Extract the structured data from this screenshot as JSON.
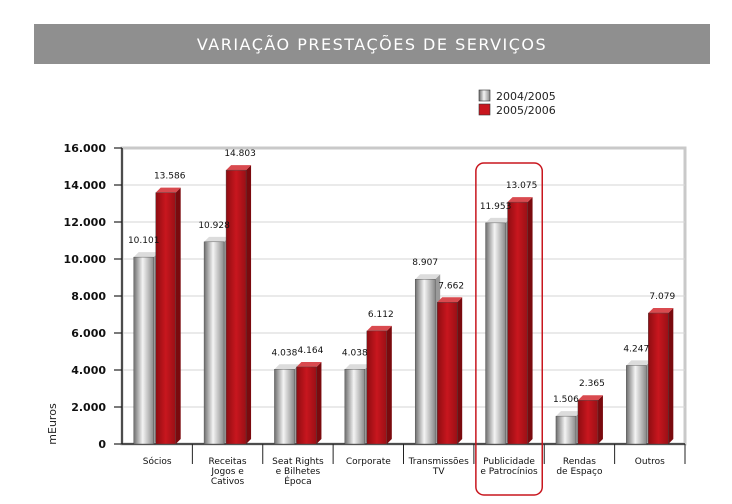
{
  "colors": {
    "series1_front": "#c4c4c4",
    "series2_front": "#c8161e",
    "highlight": "#c8161e",
    "title_bg": "#8f8f8f"
  },
  "chart_data": {
    "type": "bar",
    "title": "VARIAÇÃO PRESTAÇÕES DE SERVIÇOS",
    "ylabel": "mEuros",
    "xlabel": "",
    "ylim": [
      0,
      16000
    ],
    "yticks": [
      0,
      2000,
      4000,
      6000,
      8000,
      10000,
      12000,
      14000,
      16000
    ],
    "ytick_labels": [
      "0",
      "2.000",
      "4.000",
      "6.000",
      "8.000",
      "10.000",
      "12.000",
      "14.000",
      "16.000"
    ],
    "legend_position": "top-right",
    "categories": [
      [
        "Sócios"
      ],
      [
        "Receitas",
        "Jogos e",
        "Cativos"
      ],
      [
        "Seat Rights",
        "e Bilhetes",
        "Época"
      ],
      [
        "Corporate"
      ],
      [
        "Transmissões",
        "TV"
      ],
      [
        "Publicidade",
        "e Patrocínios"
      ],
      [
        "Rendas",
        "de Espaço"
      ],
      [
        "Outros"
      ]
    ],
    "highlighted_category_index": 5,
    "series": [
      {
        "name": "2004/2005",
        "values": [
          10101,
          10928,
          4038,
          4038,
          8907,
          11953,
          1506,
          4247
        ],
        "labels": [
          "10.101",
          "10.928",
          "4.038",
          "4.038",
          "8.907",
          "11.953",
          "1.506",
          "4.247"
        ]
      },
      {
        "name": "2005/2006",
        "values": [
          13586,
          14803,
          4164,
          6112,
          7662,
          13075,
          2365,
          7079
        ],
        "labels": [
          "13.586",
          "14.803",
          "4.164",
          "6.112",
          "7.662",
          "13.075",
          "2.365",
          "7.079"
        ]
      }
    ]
  }
}
